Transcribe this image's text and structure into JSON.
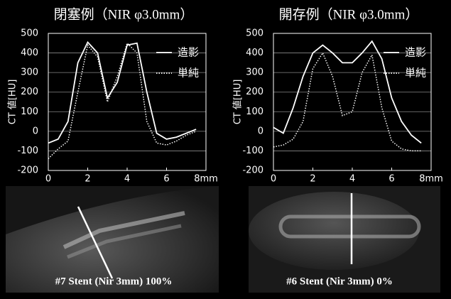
{
  "chart_data": [
    {
      "type": "line",
      "title": "閉塞例（NIR φ3.0mm）",
      "y_label": "CT 値[HU]",
      "x": [
        0,
        0.5,
        1,
        1.5,
        2,
        2.5,
        3,
        3.5,
        4,
        4.5,
        5,
        5.5,
        6,
        6.5,
        7,
        7.5
      ],
      "series": [
        {
          "name": "造影",
          "color": "#ffffff",
          "style": "solid",
          "values": [
            -60,
            -40,
            50,
            350,
            455,
            400,
            170,
            250,
            440,
            450,
            200,
            -10,
            -40,
            -30,
            -10,
            10
          ]
        },
        {
          "name": "単純",
          "color": "#ffffff",
          "style": "dotted",
          "values": [
            -140,
            -90,
            -50,
            200,
            440,
            380,
            150,
            280,
            450,
            400,
            50,
            -60,
            -70,
            -50,
            -20,
            0
          ]
        }
      ],
      "xlim": [
        0,
        8
      ],
      "xticks": [
        0,
        2,
        4,
        6,
        {
          "value": 8,
          "label": "8mm"
        }
      ],
      "ylim": [
        -200,
        500
      ],
      "yticks": [
        -200,
        -100,
        0,
        100,
        200,
        300,
        400,
        500
      ],
      "grid": true
    },
    {
      "type": "line",
      "title": "開存例（NIR φ3.0mm）",
      "y_label": "CT 値[HU]",
      "x": [
        0,
        0.5,
        1,
        1.5,
        2,
        2.5,
        3,
        3.5,
        4,
        4.5,
        5,
        5.5,
        6,
        6.5,
        7,
        7.5
      ],
      "series": [
        {
          "name": "造影",
          "color": "#ffffff",
          "style": "solid",
          "values": [
            20,
            -10,
            120,
            280,
            400,
            440,
            400,
            350,
            350,
            400,
            460,
            370,
            170,
            50,
            -20,
            -60
          ]
        },
        {
          "name": "単純",
          "color": "#ffffff",
          "style": "dotted",
          "values": [
            -80,
            -70,
            -40,
            50,
            320,
            400,
            280,
            80,
            100,
            300,
            390,
            120,
            -50,
            -90,
            -100,
            -100
          ]
        }
      ],
      "xlim": [
        0,
        8
      ],
      "xticks": [
        0,
        2,
        4,
        6,
        {
          "value": 8,
          "label": "8mm"
        }
      ],
      "ylim": [
        -200,
        500
      ],
      "yticks": [
        -200,
        -100,
        0,
        100,
        200,
        300,
        400,
        500
      ],
      "grid": true
    }
  ],
  "captions": [
    "#7 Stent (Nir 3mm) 100%",
    "#6  Stent (Nir 3mm) 0%"
  ]
}
